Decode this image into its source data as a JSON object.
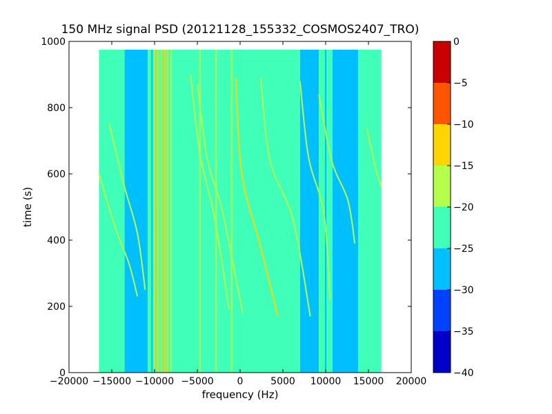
{
  "chart_data": {
    "type": "heatmap",
    "title": "150 MHz signal PSD (20121128_155332_COSMOS2407_TRO)",
    "xlabel": "frequency (Hz)",
    "ylabel": "time (s)",
    "xlim": [
      -20000,
      20000
    ],
    "ylim": [
      0,
      1000
    ],
    "xticks": [
      -20000,
      -15000,
      -10000,
      -5000,
      0,
      5000,
      10000,
      15000,
      20000
    ],
    "xtick_labels": [
      "−20000",
      "−15000",
      "−10000",
      "−5000",
      "0",
      "5000",
      "10000",
      "15000",
      "20000"
    ],
    "yticks": [
      0,
      200,
      400,
      600,
      800,
      1000
    ],
    "ytick_labels": [
      "0",
      "200",
      "400",
      "600",
      "800",
      "1000"
    ],
    "data_extent": {
      "x": [
        -16500,
        16500
      ],
      "y": [
        0,
        975
      ]
    },
    "grid": false,
    "colorbar": {
      "levels": [
        -40,
        -35,
        -30,
        -25,
        -20,
        -15,
        -10,
        -5,
        0
      ],
      "labels": [
        "−40",
        "−35",
        "−30",
        "−25",
        "−20",
        "−15",
        "−10",
        "−5",
        "0"
      ],
      "colors": [
        "#0000c8",
        "#0040ff",
        "#00bfff",
        "#40ffb8",
        "#b3ff4c",
        "#ffd500",
        "#ff5500",
        "#c80000"
      ]
    },
    "background_bands": [
      {
        "x": [
          -16500,
          -13500
        ],
        "level": -22
      },
      {
        "x": [
          -13500,
          -10800
        ],
        "level": -27
      },
      {
        "x": [
          -10800,
          7000
        ],
        "level": -22
      },
      {
        "x": [
          7000,
          9200
        ],
        "level": -27
      },
      {
        "x": [
          9200,
          10800
        ],
        "level": -22
      },
      {
        "x": [
          10800,
          13800
        ],
        "level": -27
      },
      {
        "x": [
          13800,
          16500
        ],
        "level": -22
      }
    ],
    "vertical_lines": [
      {
        "x": -10300,
        "level": -27
      },
      {
        "x": -10000,
        "level": -13
      },
      {
        "x": -9600,
        "level": -13
      },
      {
        "x": -9200,
        "level": -13
      },
      {
        "x": -8800,
        "level": -13
      },
      {
        "x": -8500,
        "level": -13
      },
      {
        "x": -8100,
        "level": -18
      },
      {
        "x": -4700,
        "level": -18
      },
      {
        "x": -2800,
        "level": -18
      },
      {
        "x": -1000,
        "level": -18
      },
      {
        "x": 10000,
        "level": -27
      }
    ],
    "series": [
      {
        "level": -18,
        "x": [
          -16500,
          -14500,
          -13000,
          -12000
        ],
        "y": [
          600,
          430,
          330,
          230
        ]
      },
      {
        "level": -18,
        "x": [
          -15300,
          -13500,
          -12000,
          -11100
        ],
        "y": [
          750,
          560,
          420,
          250
        ]
      },
      {
        "level": -18,
        "x": [
          -5800,
          -4700,
          -3000,
          -1300
        ],
        "y": [
          900,
          660,
          470,
          190
        ]
      },
      {
        "level": -18,
        "x": [
          -5000,
          -3800,
          -2100,
          300
        ],
        "y": [
          870,
          640,
          490,
          180
        ]
      },
      {
        "level": -13,
        "x": [
          -500,
          200,
          2400,
          4400
        ],
        "y": [
          890,
          600,
          380,
          170
        ]
      },
      {
        "level": -18,
        "x": [
          2400,
          3500,
          6200,
          8200
        ],
        "y": [
          890,
          640,
          460,
          170
        ]
      },
      {
        "level": -18,
        "x": [
          7000,
          8000,
          9800,
          10500
        ],
        "y": [
          880,
          650,
          480,
          220
        ]
      },
      {
        "level": -18,
        "x": [
          9200,
          10700,
          12600,
          13400
        ],
        "y": [
          840,
          640,
          520,
          390
        ]
      },
      {
        "level": -18,
        "x": [
          14800,
          15800,
          16500
        ],
        "y": [
          740,
          620,
          560
        ]
      }
    ]
  }
}
